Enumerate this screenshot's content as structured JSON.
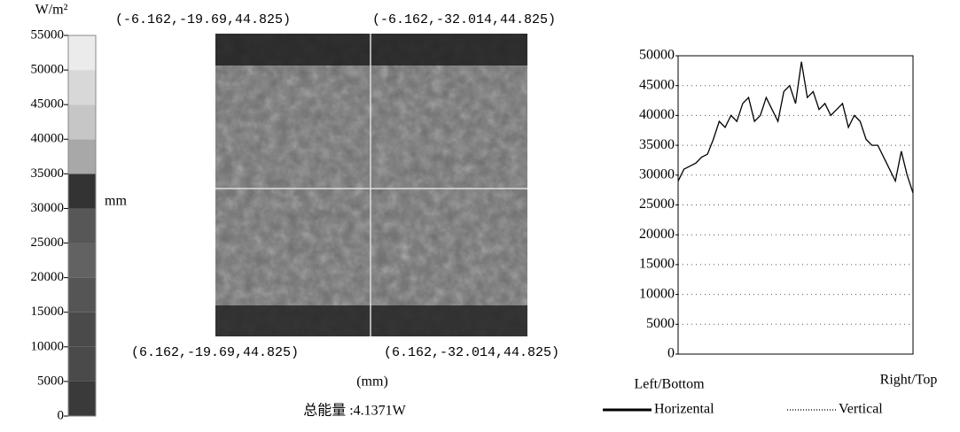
{
  "colorbar": {
    "unit": "W/m²",
    "side_label": "mm",
    "ticks": [
      0,
      5000,
      10000,
      15000,
      20000,
      25000,
      30000,
      35000,
      40000,
      45000,
      50000,
      55000
    ],
    "colors": [
      "#3a3a3a",
      "#4a4a4a",
      "#4a4a4a",
      "#555555",
      "#626262",
      "#575757",
      "#333333",
      "#a8a8a8",
      "#c6c6c6",
      "#d8d8d8",
      "#ebebeb"
    ]
  },
  "image": {
    "top_left": "(-6.162,-19.69,44.825)",
    "top_right": "(-6.162,-32.014,44.825)",
    "bottom_left": "(6.162,-19.69,44.825)",
    "bottom_right": "(6.162,-32.014,44.825)",
    "axis_unit": "(mm)",
    "total_energy": "总能量 :4.1371W"
  },
  "chart_data": {
    "type": "line",
    "left_label": "Left/Bottom",
    "right_label": "Right/Top",
    "x": [
      0,
      1,
      2,
      3,
      4,
      5,
      6,
      7,
      8,
      9,
      10,
      11,
      12,
      13,
      14,
      15,
      16,
      17,
      18,
      19,
      20,
      21,
      22,
      23,
      24,
      25,
      26,
      27,
      28,
      29,
      30,
      31,
      32,
      33,
      34,
      35,
      36,
      37,
      38,
      39,
      40
    ],
    "xlim": [
      0,
      40
    ],
    "ylim": [
      0,
      50000
    ],
    "yticks": [
      0,
      5000,
      10000,
      15000,
      20000,
      25000,
      30000,
      35000,
      40000,
      45000,
      50000
    ],
    "grid": true,
    "series": [
      {
        "name": "Horizental",
        "color": "#000000",
        "style": "solid",
        "values": [
          29000,
          31000,
          31500,
          32000,
          33000,
          33500,
          36000,
          39000,
          38000,
          40000,
          39000,
          42000,
          43000,
          39000,
          40000,
          43000,
          41000,
          39000,
          44000,
          45000,
          42000,
          49000,
          43000,
          44000,
          41000,
          42000,
          40000,
          41000,
          42000,
          38000,
          40000,
          39000,
          36000,
          35000,
          35000,
          33000,
          31000,
          29000,
          34000,
          30000,
          27000
        ]
      },
      {
        "name": "Vertical",
        "color": "#555555",
        "style": "dotted",
        "values": [
          null,
          0,
          0,
          0,
          0,
          0,
          0,
          null,
          null,
          null,
          null,
          null,
          null,
          null,
          null,
          null,
          null,
          null,
          null,
          null,
          null,
          null,
          null,
          null,
          null,
          null,
          null,
          null,
          null,
          null,
          null,
          null,
          null,
          null,
          null,
          null,
          null,
          null,
          null,
          null,
          null
        ]
      }
    ]
  }
}
